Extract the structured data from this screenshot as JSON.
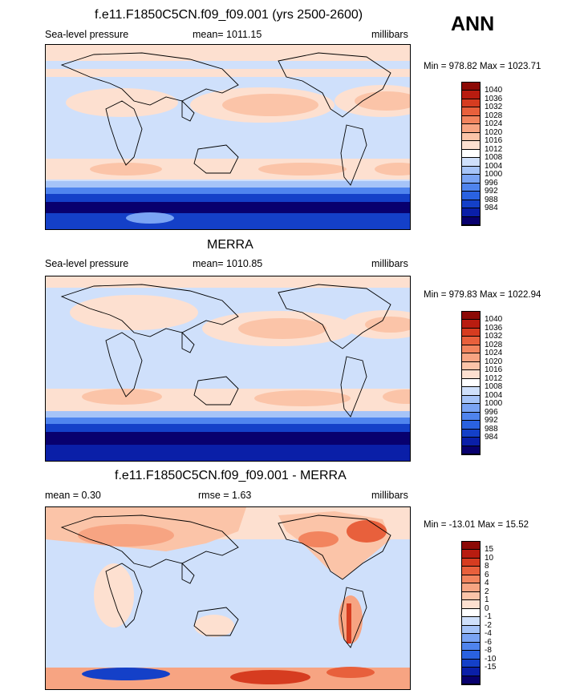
{
  "season": "ANN",
  "palette_abs": [
    "#ffffff",
    "#08006e",
    "#0a1fa8",
    "#1440c8",
    "#2a62e0",
    "#4f84ee",
    "#7aa4f4",
    "#a6c4f8",
    "#cfe0fb",
    "#ffffff",
    "#fde0d0",
    "#fbc4a8",
    "#f7a482",
    "#f2845e",
    "#e8603c",
    "#d63c20",
    "#b81c10",
    "#8c0a06"
  ],
  "palette_diff": [
    "#08006e",
    "#0a1fa8",
    "#1440c8",
    "#2a62e0",
    "#4f84ee",
    "#7aa4f4",
    "#a6c4f8",
    "#cfe0fb",
    "#ffffff",
    "#fde0d0",
    "#fbc4a8",
    "#f7a482",
    "#f2845e",
    "#e8603c",
    "#d63c20",
    "#b81c10",
    "#8c0a06"
  ],
  "panels": [
    {
      "title": "f.e11.F1850C5CN.f09_f09.001 (yrs 2500-2600)",
      "left_label": "Sea-level pressure",
      "mean_text": "mean= 1011.15",
      "units": "millibars",
      "minmax": "Min = 978.82 Max = 1023.71",
      "levels": [
        "1040",
        "1036",
        "1032",
        "1028",
        "1024",
        "1020",
        "1016",
        "1012",
        "1008",
        "1004",
        "1000",
        "996",
        "992",
        "988",
        "984"
      ]
    },
    {
      "title": "MERRA",
      "left_label": "Sea-level pressure",
      "mean_text": "mean= 1010.85",
      "units": "millibars",
      "minmax": "Min = 979.83 Max = 1022.94",
      "levels": [
        "1040",
        "1036",
        "1032",
        "1028",
        "1024",
        "1020",
        "1016",
        "1012",
        "1008",
        "1004",
        "1000",
        "996",
        "992",
        "988",
        "984"
      ]
    },
    {
      "title": "f.e11.F1850C5CN.f09_f09.001 - MERRA",
      "left_label": "mean =   0.30",
      "mean_text": "rmse =   1.63",
      "units": "millibars",
      "minmax": "Min = -13.01 Max =  15.52",
      "levels": [
        "15",
        "10",
        "8",
        "6",
        "4",
        "2",
        "1",
        "0",
        "-1",
        "-2",
        "-4",
        "-6",
        "-8",
        "-10",
        "-15"
      ]
    }
  ]
}
